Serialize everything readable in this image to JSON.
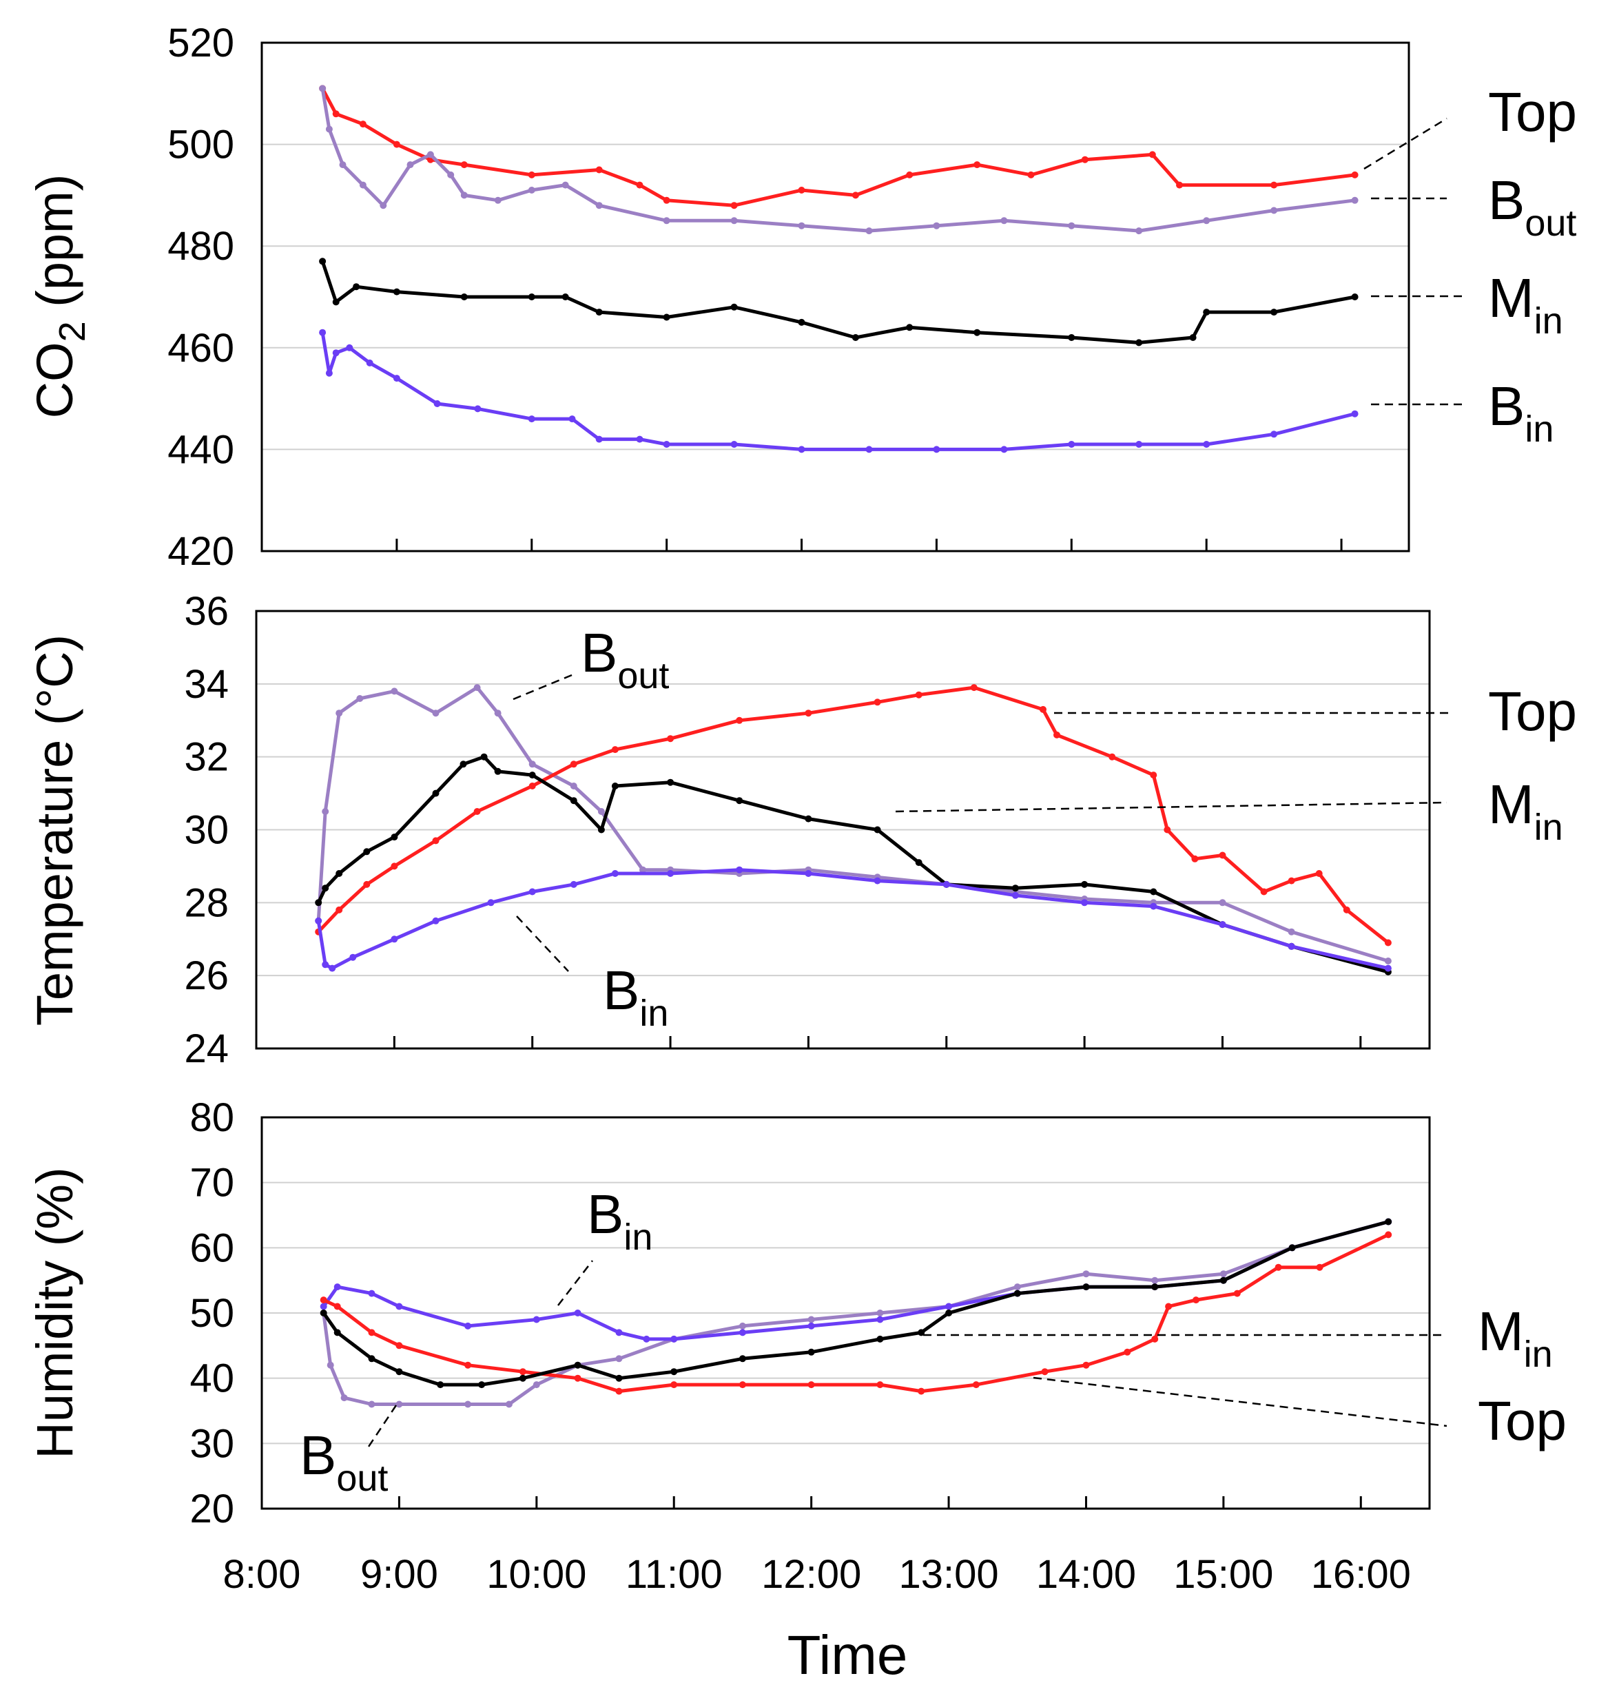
{
  "chart_data": [
    {
      "type": "line",
      "panel": "co2",
      "ylabel_main": "CO",
      "ylabel_sub": "2",
      "ylabel_rest": " (ppm)",
      "ylim": [
        420,
        520
      ],
      "yticks": [
        420,
        440,
        460,
        480,
        500,
        520
      ],
      "grid": true,
      "series": [
        {
          "name": "Top",
          "color": "#ff1f1f",
          "x": [
            8.45,
            8.55,
            8.75,
            9.0,
            9.25,
            9.5,
            10.0,
            10.5,
            10.8,
            11.0,
            11.5,
            12.0,
            12.4,
            12.8,
            13.3,
            13.7,
            14.1,
            14.6,
            14.8,
            15.5,
            16.1
          ],
          "y": [
            511,
            506,
            504,
            500,
            497,
            496,
            494,
            495,
            492,
            489,
            488,
            491,
            490,
            494,
            496,
            494,
            497,
            498,
            492,
            492,
            494
          ]
        },
        {
          "name": "Bout",
          "label_main": "B",
          "label_sub": "out",
          "color": "#9b7fc4",
          "x": [
            8.45,
            8.5,
            8.6,
            8.75,
            8.9,
            9.1,
            9.25,
            9.4,
            9.5,
            9.75,
            10.0,
            10.25,
            10.5,
            11.0,
            11.5,
            12.0,
            12.5,
            13.0,
            13.5,
            14.0,
            14.5,
            15.0,
            15.5,
            16.1
          ],
          "y": [
            511,
            503,
            496,
            492,
            488,
            496,
            498,
            494,
            490,
            489,
            491,
            492,
            488,
            485,
            485,
            484,
            483,
            484,
            485,
            484,
            483,
            485,
            487,
            489
          ]
        },
        {
          "name": "Min",
          "label_main": "M",
          "label_sub": "in",
          "color": "#000000",
          "x": [
            8.45,
            8.55,
            8.7,
            9.0,
            9.5,
            10.0,
            10.25,
            10.5,
            11.0,
            11.5,
            12.0,
            12.4,
            12.8,
            13.3,
            14.0,
            14.5,
            14.9,
            15.0,
            15.5,
            16.1
          ],
          "y": [
            477,
            469,
            472,
            471,
            470,
            470,
            470,
            467,
            466,
            468,
            465,
            462,
            464,
            463,
            462,
            461,
            462,
            467,
            467,
            470
          ]
        },
        {
          "name": "Bin",
          "label_main": "B",
          "label_sub": "in",
          "color": "#6a3df5",
          "x": [
            8.45,
            8.5,
            8.55,
            8.65,
            8.8,
            9.0,
            9.3,
            9.6,
            10.0,
            10.3,
            10.5,
            10.8,
            11.0,
            11.5,
            12.0,
            12.5,
            13.0,
            13.5,
            14.0,
            14.5,
            15.0,
            15.5,
            16.1
          ],
          "y": [
            463,
            455,
            459,
            460,
            457,
            454,
            449,
            448,
            446,
            446,
            442,
            442,
            441,
            441,
            440,
            440,
            440,
            440,
            441,
            441,
            441,
            443,
            447
          ]
        }
      ],
      "callouts": [
        "Top",
        "Bout",
        "Min",
        "Bin"
      ]
    },
    {
      "type": "line",
      "panel": "temperature",
      "ylabel": "Temperature  (°C)",
      "ylim": [
        24,
        36
      ],
      "yticks": [
        24,
        26,
        28,
        30,
        32,
        34,
        36
      ],
      "grid": true,
      "series": [
        {
          "name": "Bout",
          "label_main": "B",
          "label_sub": "out",
          "color": "#9b7fc4",
          "x": [
            8.45,
            8.5,
            8.6,
            8.75,
            9.0,
            9.3,
            9.6,
            9.75,
            10.0,
            10.3,
            10.5,
            10.8,
            11.0,
            11.5,
            12.0,
            12.5,
            13.0,
            13.5,
            14.0,
            14.5,
            15.0,
            15.5,
            16.2
          ],
          "y": [
            27.5,
            30.5,
            33.2,
            33.6,
            33.8,
            33.2,
            33.9,
            33.2,
            31.8,
            31.2,
            30.5,
            28.9,
            28.9,
            28.8,
            28.9,
            28.7,
            28.5,
            28.3,
            28.1,
            28.0,
            28.0,
            27.2,
            26.4
          ]
        },
        {
          "name": "Top",
          "color": "#ff1f1f",
          "x": [
            8.45,
            8.6,
            8.8,
            9.0,
            9.3,
            9.6,
            10.0,
            10.3,
            10.6,
            11.0,
            11.5,
            12.0,
            12.5,
            12.8,
            13.2,
            13.7,
            13.8,
            14.2,
            14.5,
            14.6,
            14.8,
            15.0,
            15.3,
            15.5,
            15.7,
            15.9,
            16.2
          ],
          "y": [
            27.2,
            27.8,
            28.5,
            29.0,
            29.7,
            30.5,
            31.2,
            31.8,
            32.2,
            32.5,
            33.0,
            33.2,
            33.5,
            33.7,
            33.9,
            33.3,
            32.6,
            32.0,
            31.5,
            30.0,
            29.2,
            29.3,
            28.3,
            28.6,
            28.8,
            27.8,
            26.9
          ]
        },
        {
          "name": "Min",
          "label_main": "M",
          "label_sub": "in",
          "color": "#000000",
          "x": [
            8.45,
            8.5,
            8.6,
            8.8,
            9.0,
            9.3,
            9.5,
            9.65,
            9.75,
            10.0,
            10.3,
            10.5,
            10.6,
            11.0,
            11.5,
            12.0,
            12.5,
            12.8,
            13.0,
            13.5,
            14.0,
            14.5,
            15.0,
            15.5,
            16.2
          ],
          "y": [
            28.0,
            28.4,
            28.8,
            29.4,
            29.8,
            31.0,
            31.8,
            32.0,
            31.6,
            31.5,
            30.8,
            30.0,
            31.2,
            31.3,
            30.8,
            30.3,
            30.0,
            29.1,
            28.5,
            28.4,
            28.5,
            28.3,
            27.4,
            26.8,
            26.1
          ]
        },
        {
          "name": "Bin",
          "label_main": "B",
          "label_sub": "in",
          "color": "#6a3df5",
          "x": [
            8.45,
            8.5,
            8.55,
            8.7,
            9.0,
            9.3,
            9.7,
            10.0,
            10.3,
            10.6,
            11.0,
            11.5,
            12.0,
            12.5,
            13.0,
            13.5,
            14.0,
            14.5,
            15.0,
            15.5,
            16.2
          ],
          "y": [
            27.5,
            26.3,
            26.2,
            26.5,
            27.0,
            27.5,
            28.0,
            28.3,
            28.5,
            28.8,
            28.8,
            28.9,
            28.8,
            28.6,
            28.5,
            28.2,
            28.0,
            27.9,
            27.4,
            26.8,
            26.2
          ]
        }
      ],
      "callouts": [
        "Bout",
        "Top",
        "Min",
        "Bin"
      ]
    },
    {
      "type": "line",
      "panel": "humidity",
      "ylabel": "Humidity  (%)",
      "ylim": [
        20,
        80
      ],
      "yticks": [
        20,
        30,
        40,
        50,
        60,
        70,
        80
      ],
      "grid": true,
      "series": [
        {
          "name": "Bout",
          "label_main": "B",
          "label_sub": "out",
          "color": "#9b7fc4",
          "x": [
            8.45,
            8.5,
            8.6,
            8.8,
            9.0,
            9.5,
            9.8,
            10.0,
            10.3,
            10.6,
            11.0,
            11.5,
            12.0,
            12.5,
            13.0,
            13.5,
            14.0,
            14.5,
            15.0,
            15.5,
            16.2
          ],
          "y": [
            50,
            42,
            37,
            36,
            36,
            36,
            36,
            39,
            42,
            43,
            46,
            48,
            49,
            50,
            51,
            54,
            56,
            55,
            56,
            60,
            64
          ]
        },
        {
          "name": "Bin",
          "label_main": "B",
          "label_sub": "in",
          "color": "#6a3df5",
          "x": [
            8.45,
            8.55,
            8.8,
            9.0,
            9.5,
            10.0,
            10.3,
            10.6,
            10.8,
            11.0,
            11.5,
            12.0,
            12.5,
            13.0,
            13.5,
            14.0,
            14.5,
            15.0,
            15.5,
            16.2
          ],
          "y": [
            51,
            54,
            53,
            51,
            48,
            49,
            50,
            47,
            46,
            46,
            47,
            48,
            49,
            51,
            53,
            54,
            54,
            55,
            60,
            64
          ]
        },
        {
          "name": "Top",
          "color": "#ff1f1f",
          "x": [
            8.45,
            8.55,
            8.8,
            9.0,
            9.5,
            9.9,
            10.3,
            10.6,
            11.0,
            11.5,
            12.0,
            12.5,
            12.8,
            13.2,
            13.7,
            14.0,
            14.3,
            14.5,
            14.6,
            14.8,
            15.1,
            15.4,
            15.7,
            16.2
          ],
          "y": [
            52,
            51,
            47,
            45,
            42,
            41,
            40,
            38,
            39,
            39,
            39,
            39,
            38,
            39,
            41,
            42,
            44,
            46,
            51,
            52,
            53,
            57,
            57,
            62
          ]
        },
        {
          "name": "Min",
          "label_main": "M",
          "label_sub": "in",
          "color": "#000000",
          "x": [
            8.45,
            8.55,
            8.8,
            9.0,
            9.3,
            9.6,
            9.9,
            10.3,
            10.6,
            11.0,
            11.5,
            12.0,
            12.5,
            12.8,
            13.0,
            13.5,
            14.0,
            14.5,
            15.0,
            15.5,
            16.2
          ],
          "y": [
            50,
            47,
            43,
            41,
            39,
            39,
            40,
            42,
            40,
            41,
            43,
            44,
            46,
            47,
            50,
            53,
            54,
            54,
            55,
            60,
            64
          ]
        }
      ],
      "callouts": [
        "Bin",
        "Min",
        "Top",
        "Bout"
      ]
    }
  ],
  "xaxis": {
    "label": "Time",
    "xlim": [
      8.0,
      16.5
    ],
    "ticks": [
      {
        "v": 8,
        "label": "8:00"
      },
      {
        "v": 9,
        "label": "9:00"
      },
      {
        "v": 10,
        "label": "10:00"
      },
      {
        "v": 11,
        "label": "11:00"
      },
      {
        "v": 12,
        "label": "12:00"
      },
      {
        "v": 13,
        "label": "13:00"
      },
      {
        "v": 14,
        "label": "14:00"
      },
      {
        "v": 15,
        "label": "15:00"
      },
      {
        "v": 16,
        "label": "16:00"
      }
    ]
  }
}
